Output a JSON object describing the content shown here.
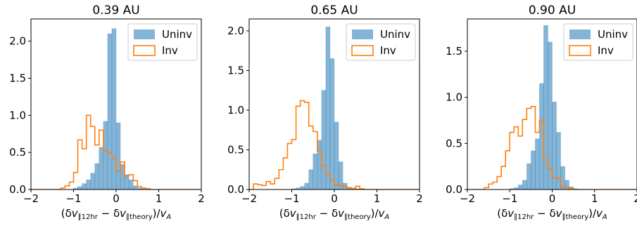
{
  "chart_data": [
    {
      "type": "bar",
      "title": "0.39 AU",
      "xlabel": "(δv∥12hr − δv∥theory)/vA",
      "xlim": [
        -2,
        2
      ],
      "ylim": [
        0,
        2.3
      ],
      "xticks": [
        "−2",
        "−1",
        "0",
        "1",
        "2"
      ],
      "yticks": [
        "0.0",
        "0.5",
        "1.0",
        "1.5",
        "2.0"
      ],
      "ytick_values": [
        0,
        0.5,
        1.0,
        1.5,
        2.0
      ],
      "legend": [
        "Uninv",
        "Inv"
      ],
      "legend_position": "top-right",
      "bin_edges": [
        -2.0,
        -1.9,
        -1.8,
        -1.7,
        -1.6,
        -1.5,
        -1.4,
        -1.3,
        -1.2,
        -1.1,
        -1.0,
        -0.9,
        -0.8,
        -0.7,
        -0.6,
        -0.5,
        -0.4,
        -0.3,
        -0.2,
        -0.1,
        0.0,
        0.1,
        0.2,
        0.3,
        0.4,
        0.5,
        0.6,
        0.7,
        0.8,
        0.9,
        1.0,
        1.1,
        1.2,
        1.3,
        1.4,
        1.5,
        1.6,
        1.7,
        1.8,
        1.9,
        2.0
      ],
      "series": [
        {
          "name": "Uninv",
          "type": "bar",
          "values": [
            0,
            0,
            0,
            0,
            0,
            0,
            0,
            0,
            0,
            0,
            0.02,
            0.04,
            0.08,
            0.13,
            0.22,
            0.35,
            0.57,
            0.92,
            2.1,
            2.17,
            0.9,
            0.34,
            0.2,
            0.13,
            0.05,
            0.02,
            0.01,
            0.005,
            0,
            0,
            0,
            0,
            0,
            0,
            0,
            0,
            0,
            0,
            0,
            0
          ]
        },
        {
          "name": "Inv",
          "type": "step",
          "values": [
            0,
            0,
            0,
            0,
            0,
            0,
            0,
            0.02,
            0.05,
            0.1,
            0.23,
            0.67,
            0.55,
            1.0,
            0.85,
            0.6,
            0.8,
            0.52,
            0.5,
            0.42,
            0.25,
            0.37,
            0.18,
            0.2,
            0.12,
            0.04,
            0.02,
            0.01,
            0,
            0,
            0,
            0,
            0,
            0,
            0,
            0,
            0,
            0,
            0,
            0
          ]
        }
      ]
    },
    {
      "type": "bar",
      "title": "0.65 AU",
      "xlabel": "(δv∥12hr − δv∥theory)/vA",
      "xlim": [
        -2,
        2
      ],
      "ylim": [
        0,
        2.15
      ],
      "xticks": [
        "−2",
        "−1",
        "0",
        "1",
        "2"
      ],
      "yticks": [
        "0.0",
        "0.5",
        "1.0",
        "1.5",
        "2.0"
      ],
      "ytick_values": [
        0,
        0.5,
        1.0,
        1.5,
        2.0
      ],
      "legend": [
        "Uninv",
        "Inv"
      ],
      "legend_position": "top-right",
      "bin_edges": [
        -2.0,
        -1.9,
        -1.8,
        -1.7,
        -1.6,
        -1.5,
        -1.4,
        -1.3,
        -1.2,
        -1.1,
        -1.0,
        -0.9,
        -0.8,
        -0.7,
        -0.6,
        -0.5,
        -0.4,
        -0.3,
        -0.2,
        -0.1,
        0.0,
        0.1,
        0.2,
        0.3,
        0.4,
        0.5,
        0.6,
        0.7,
        0.8,
        0.9,
        1.0,
        1.1,
        1.2,
        1.3,
        1.4,
        1.5,
        1.6,
        1.7,
        1.8,
        1.9,
        2.0
      ],
      "series": [
        {
          "name": "Uninv",
          "type": "bar",
          "values": [
            0,
            0,
            0,
            0,
            0,
            0,
            0,
            0,
            0,
            0,
            0.01,
            0.02,
            0.04,
            0.08,
            0.25,
            0.45,
            0.62,
            1.25,
            2.05,
            1.65,
            0.85,
            0.35,
            0.08,
            0.03,
            0.02,
            0.01,
            0.005,
            0,
            0,
            0,
            0,
            0,
            0,
            0,
            0,
            0,
            0,
            0,
            0,
            0
          ]
        },
        {
          "name": "Inv",
          "type": "step",
          "values": [
            0,
            0.07,
            0.06,
            0.05,
            0.1,
            0.07,
            0.14,
            0.25,
            0.4,
            0.58,
            0.63,
            1.05,
            1.12,
            1.1,
            0.8,
            0.73,
            0.48,
            0.3,
            0.19,
            0.12,
            0.06,
            0.05,
            0.04,
            0.02,
            0.01,
            0.04,
            0.01,
            0,
            0,
            0,
            0,
            0,
            0,
            0,
            0,
            0,
            0,
            0,
            0,
            0
          ]
        }
      ]
    },
    {
      "type": "bar",
      "title": "0.90 AU",
      "xlabel": "(δv∥12hr − δv∥theory)/vA",
      "xlim": [
        -2,
        2
      ],
      "ylim": [
        0,
        1.85
      ],
      "xticks": [
        "−2",
        "−1",
        "0",
        "1",
        "2"
      ],
      "yticks": [
        "0.0",
        "0.5",
        "1.0",
        "1.5"
      ],
      "ytick_values": [
        0,
        0.5,
        1.0,
        1.5
      ],
      "legend": [
        "Uninv",
        "Inv"
      ],
      "legend_position": "top-right",
      "bin_edges": [
        -2.0,
        -1.9,
        -1.8,
        -1.7,
        -1.6,
        -1.5,
        -1.4,
        -1.3,
        -1.2,
        -1.1,
        -1.0,
        -0.9,
        -0.8,
        -0.7,
        -0.6,
        -0.5,
        -0.4,
        -0.3,
        -0.2,
        -0.1,
        0.0,
        0.1,
        0.2,
        0.3,
        0.4,
        0.5,
        0.6,
        0.7,
        0.8,
        0.9,
        1.0,
        1.1,
        1.2,
        1.3,
        1.4,
        1.5,
        1.6,
        1.7,
        1.8,
        1.9,
        2.0
      ],
      "series": [
        {
          "name": "Uninv",
          "type": "bar",
          "values": [
            0,
            0,
            0,
            0,
            0,
            0,
            0,
            0,
            0,
            0,
            0.01,
            0.02,
            0.05,
            0.1,
            0.28,
            0.42,
            0.55,
            1.15,
            1.78,
            1.6,
            0.95,
            0.62,
            0.25,
            0.1,
            0.03,
            0.01,
            0.005,
            0,
            0,
            0,
            0,
            0,
            0,
            0,
            0,
            0,
            0,
            0,
            0,
            0
          ]
        },
        {
          "name": "Inv",
          "type": "step",
          "values": [
            0,
            0,
            0,
            0,
            0.02,
            0.06,
            0.08,
            0.14,
            0.25,
            0.42,
            0.62,
            0.68,
            0.58,
            0.76,
            0.88,
            0.9,
            0.62,
            0.75,
            0.32,
            0.22,
            0.13,
            0.12,
            0.03,
            0.02,
            0.01,
            0,
            0,
            0,
            0,
            0,
            0,
            0,
            0,
            0,
            0,
            0,
            0,
            0,
            0,
            0
          ]
        }
      ]
    }
  ],
  "colors": {
    "uninv": "#1f77b4",
    "inv": "#ff7f0e"
  }
}
